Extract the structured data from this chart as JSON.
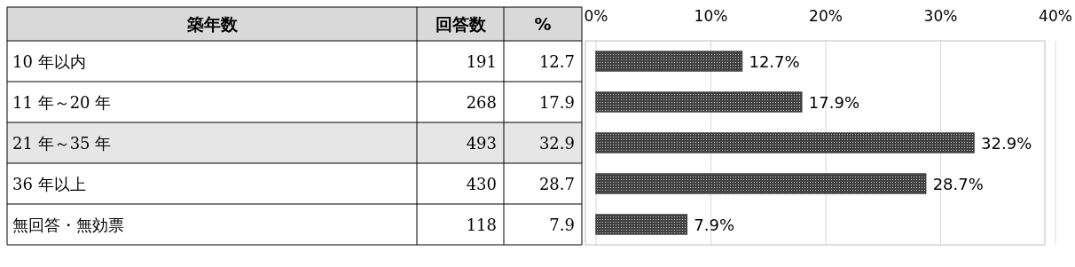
{
  "chart_data": [
    {
      "type": "other",
      "title": "築年数",
      "categories": [
        "10 年以内",
        "11 年～20 年",
        "21 年～35 年",
        "36 年以上",
        "無回答・無効票"
      ],
      "series": [
        {
          "name": "回答数",
          "values": [
            191,
            268,
            493,
            430,
            118
          ]
        },
        {
          "name": "%",
          "values": [
            12.7,
            17.9,
            32.9,
            28.7,
            7.9
          ]
        }
      ],
      "data_labels": true
    },
    {
      "type": "bar",
      "orientation": "horizontal",
      "categories": [
        null,
        null,
        null,
        null,
        null
      ],
      "values": [
        12.7,
        17.9,
        32.9,
        28.7,
        7.9
      ],
      "value_labels": [
        "12.7%",
        "17.9%",
        "32.9%",
        "28.7%",
        "7.9%"
      ],
      "color": "#404040",
      "xlim": [
        0,
        40
      ],
      "xticks": [
        {
          "value": 0,
          "label": "0%"
        },
        {
          "value": 10,
          "label": "10%"
        },
        {
          "value": 20,
          "label": "20%"
        },
        {
          "value": 30,
          "label": "30%"
        },
        {
          "value": 40,
          "label": "40%"
        }
      ],
      "grid": "x"
    }
  ]
}
